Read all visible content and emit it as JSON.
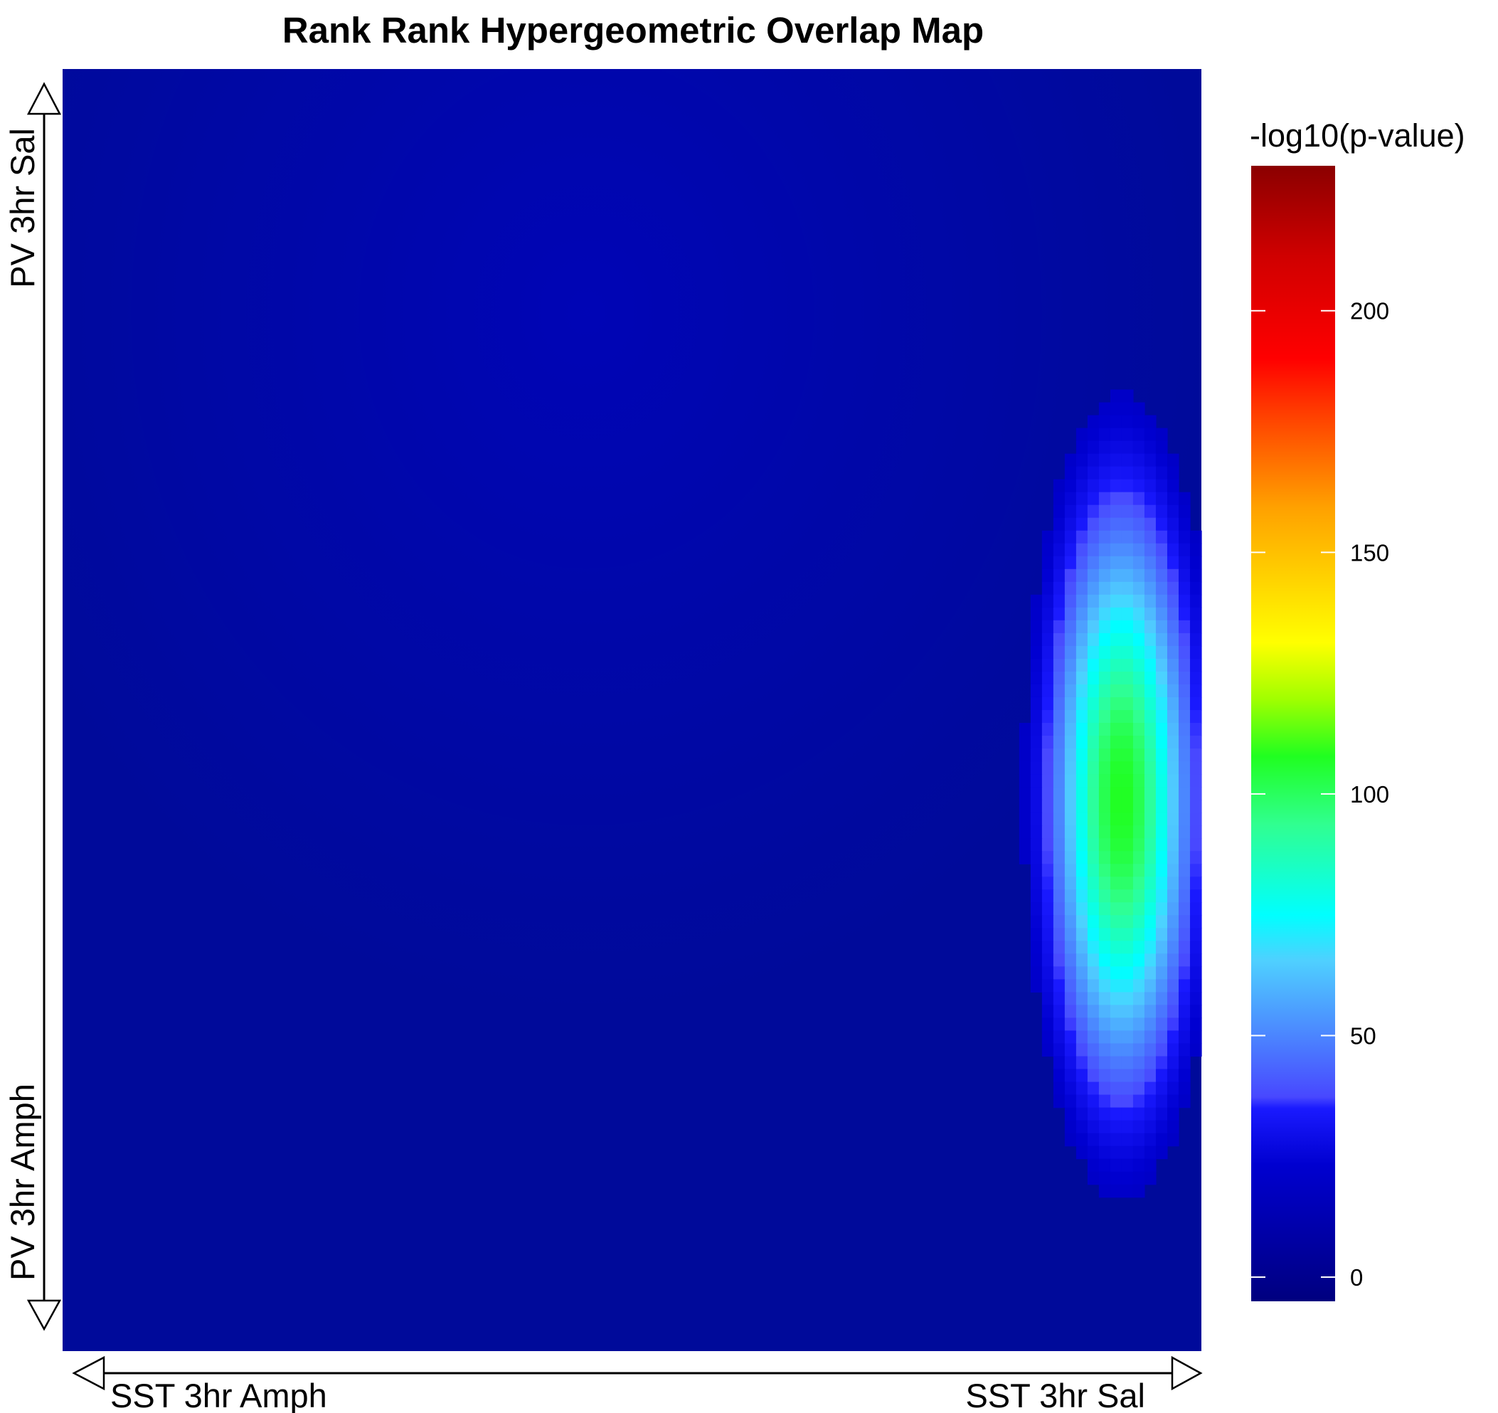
{
  "chart_data": {
    "type": "heatmap",
    "title": "Rank Rank Hypergeometric Overlap Map",
    "x_axis": {
      "label_left": "SST 3hr Amph",
      "label_right": "SST 3hr Sal"
    },
    "y_axis": {
      "label_top": "PV 3hr Sal",
      "label_bottom": "PV 3hr Amph"
    },
    "colorbar": {
      "label": "-log10(p-value)",
      "min": -5,
      "max": 230,
      "ticks": [
        0,
        50,
        100,
        150,
        200
      ],
      "colors": [
        "#00007f",
        "#0000ff",
        "#00ffff",
        "#7fff7f",
        "#ffff00",
        "#ff0000",
        "#7f0000"
      ]
    },
    "grid": false,
    "value_range": [
      0,
      100
    ],
    "hotspot": {
      "description_value_peak": 100,
      "x_fraction_center": 0.93,
      "y_fraction_center": 0.57
    }
  }
}
